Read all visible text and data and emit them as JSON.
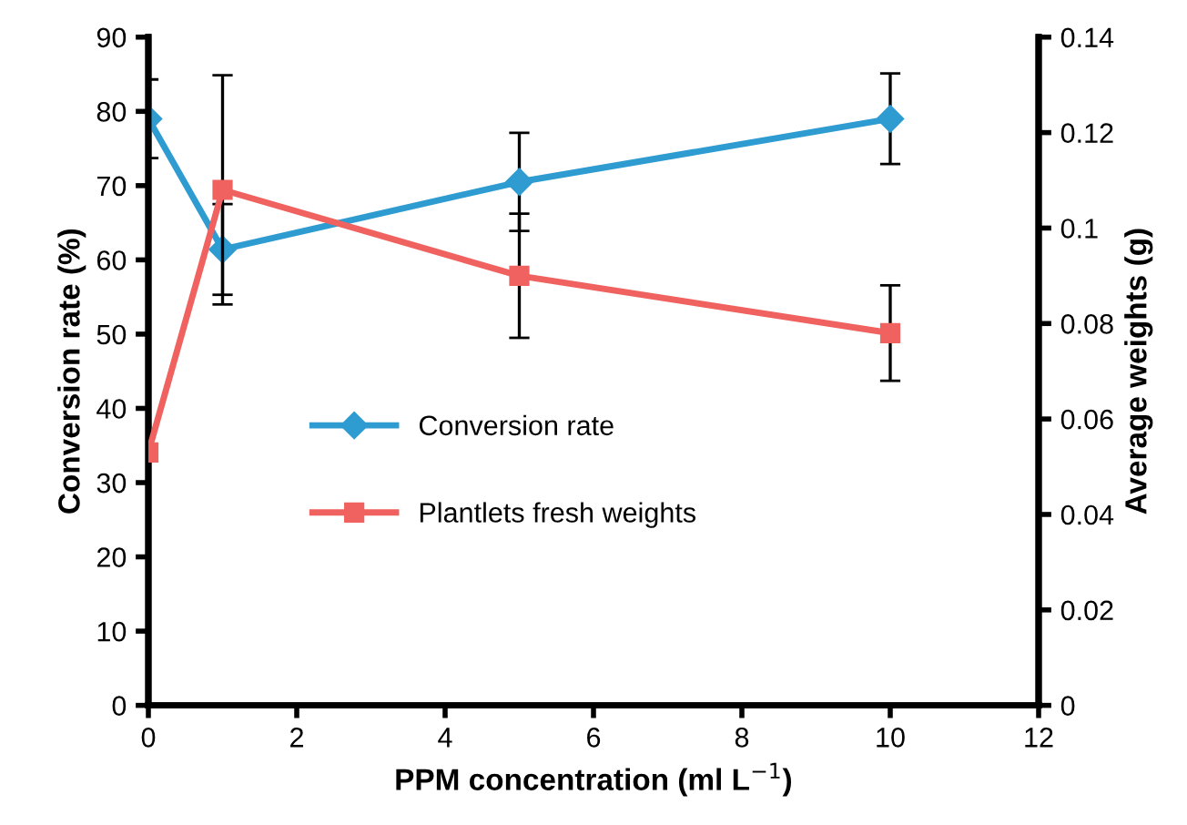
{
  "chart_data": {
    "type": "line",
    "xlabel": "PPM concentration (ml L$^{−1}$)",
    "ylabel": "Conversion rate (%)",
    "y2label": "Average weights (g)",
    "x": [
      0,
      1,
      5,
      10
    ],
    "series": [
      {
        "name": "Conversion rate",
        "color": "#2e9bd1",
        "marker": "diamond",
        "values": [
          79,
          61.4,
          70.5,
          79
        ],
        "errors": [
          5.3,
          6.1,
          6.6,
          6.1
        ]
      },
      {
        "name": "Plantlets fresh weights",
        "color": "#f0625f",
        "marker": "square",
        "axis": "y2",
        "values": [
          0.053,
          0.108,
          0.09,
          0.078
        ],
        "errors": [
          null,
          0.024,
          0.013,
          0.01
        ]
      }
    ],
    "xlim": [
      0,
      12
    ],
    "xticks": [
      0,
      2,
      4,
      6,
      8,
      10,
      12
    ],
    "ylim": [
      0,
      90
    ],
    "yticks": [
      0,
      10,
      20,
      30,
      40,
      50,
      60,
      70,
      80,
      90
    ],
    "y2lim": [
      0,
      0.14
    ],
    "y2ticks": [
      0,
      0.02,
      0.04,
      0.06,
      0.08,
      0.1,
      0.12,
      0.14
    ],
    "grid": false,
    "legend": "center",
    "line_style": "solid"
  }
}
